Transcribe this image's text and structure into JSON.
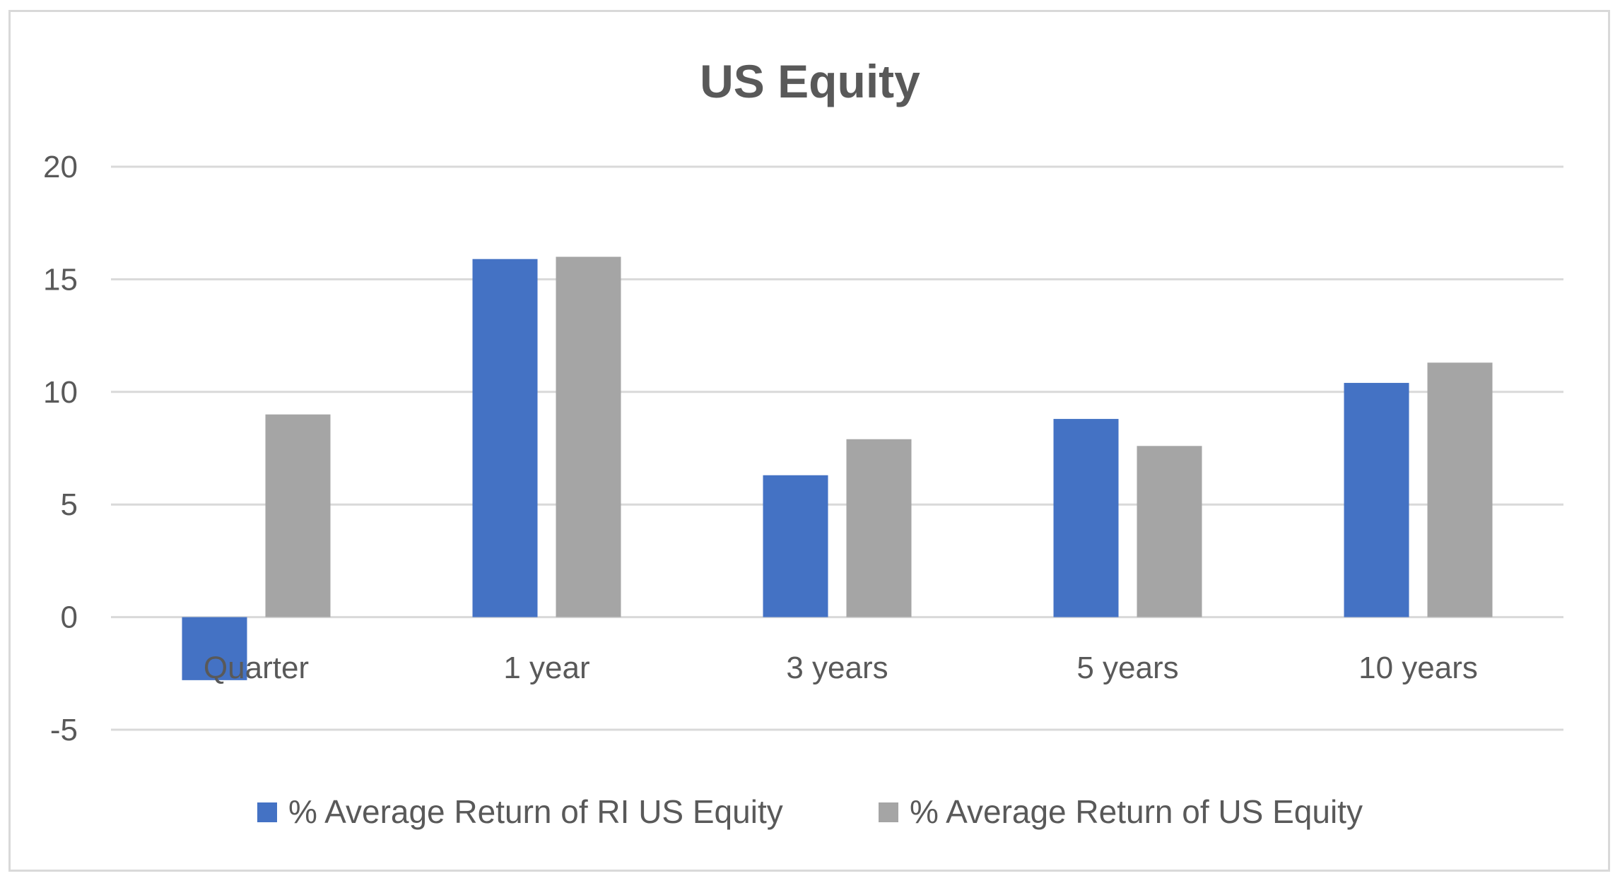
{
  "chart_data": {
    "type": "bar",
    "title": "US Equity",
    "categories": [
      "Quarter",
      "1 year",
      "3 years",
      "5 years",
      "10 years"
    ],
    "series": [
      {
        "name": "% Average Return of RI US Equity",
        "color": "#4472C4",
        "values": [
          -2.8,
          15.9,
          6.3,
          8.8,
          10.4
        ]
      },
      {
        "name": "% Average Return of US Equity",
        "color": "#A5A5A5",
        "values": [
          9.0,
          16.0,
          7.9,
          7.6,
          11.3
        ]
      }
    ],
    "yticks": [
      -5,
      0,
      5,
      10,
      15,
      20
    ],
    "ylim": [
      -5,
      20
    ],
    "grid": true,
    "legend": "bottom",
    "xlabel": "",
    "ylabel": ""
  }
}
